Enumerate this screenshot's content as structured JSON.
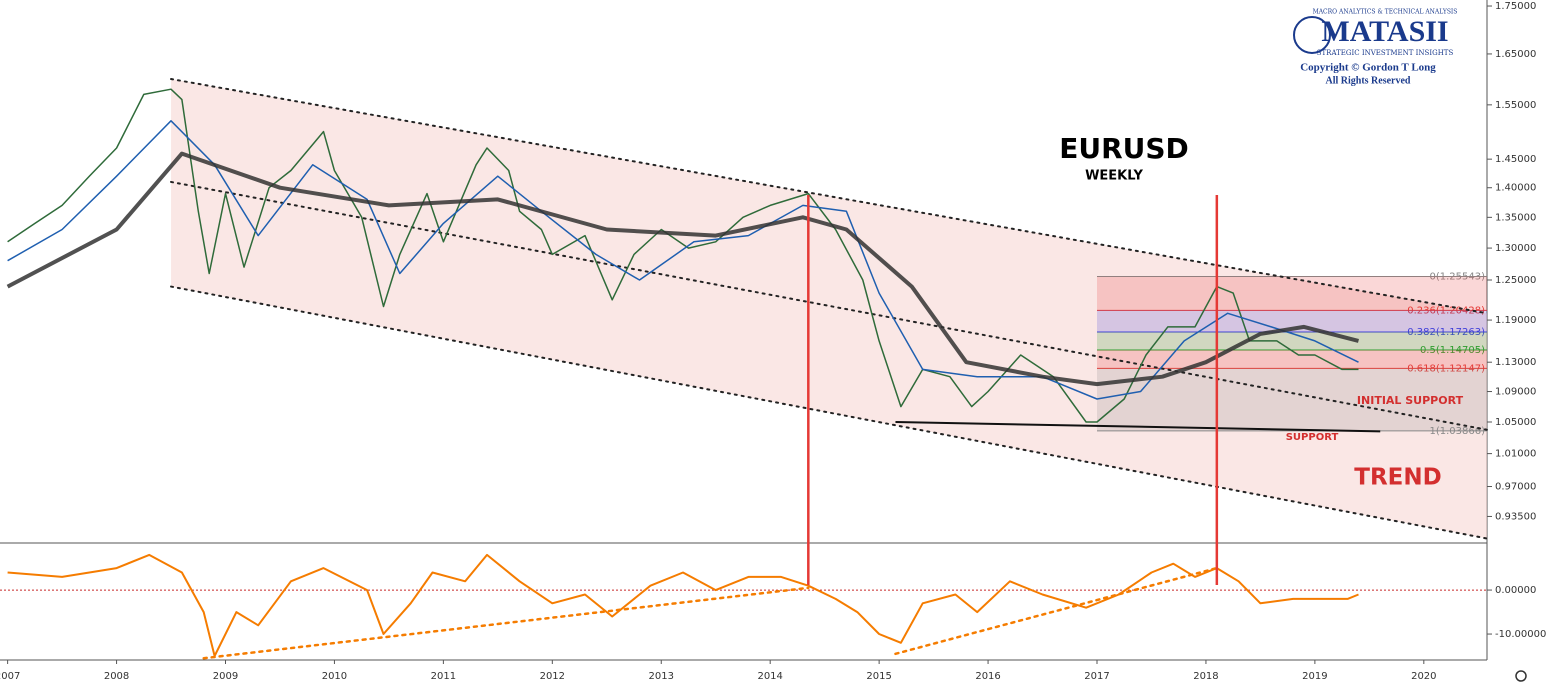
{
  "chart_data": [
    {
      "type": "line",
      "log_scale": true,
      "xlim": [
        2006.93,
        2020.58
      ],
      "ylim": [
        0.905,
        1.763
      ],
      "yticks": [
        {
          "value": 1.75,
          "label": "1.75000"
        },
        {
          "value": 1.65,
          "label": "1.65000"
        },
        {
          "value": 1.55,
          "label": "1.55000"
        },
        {
          "value": 1.45,
          "label": "1.45000"
        },
        {
          "value": 1.4,
          "label": "1.40000"
        },
        {
          "value": 1.35,
          "label": "1.35000"
        },
        {
          "value": 1.3,
          "label": "1.30000"
        },
        {
          "value": 1.25,
          "label": "1.25000"
        },
        {
          "value": 1.19,
          "label": "1.19000"
        },
        {
          "value": 1.13,
          "label": "1.13000"
        },
        {
          "value": 1.09,
          "label": "1.09000"
        },
        {
          "value": 1.05,
          "label": "1.05000"
        },
        {
          "value": 1.01,
          "label": "1.01000"
        },
        {
          "value": 0.97,
          "label": "0.97000"
        },
        {
          "value": 0.935,
          "label": "0.93500"
        }
      ],
      "series": [
        {
          "color": "#2f6b3a",
          "x": [
            2007.0,
            2007.25,
            2007.5,
            2007.75,
            2008.0,
            2008.25,
            2008.5,
            2008.6,
            2008.75,
            2008.85,
            2009.0,
            2009.17,
            2009.4,
            2009.6,
            2009.9,
            2010.0,
            2010.25,
            2010.45,
            2010.6,
            2010.85,
            2011.0,
            2011.3,
            2011.4,
            2011.6,
            2011.7,
            2011.9,
            2012.0,
            2012.3,
            2012.55,
            2012.75,
            2013.0,
            2013.25,
            2013.5,
            2013.75,
            2014.0,
            2014.35,
            2014.6,
            2014.85,
            2015.0,
            2015.2,
            2015.4,
            2015.65,
            2015.85,
            2016.0,
            2016.3,
            2016.6,
            2016.9,
            2017.0,
            2017.25,
            2017.45,
            2017.65,
            2017.9,
            2018.1,
            2018.25,
            2018.4,
            2018.65,
            2018.85,
            2019.0,
            2019.25,
            2019.4
          ],
          "values": [
            1.31,
            1.34,
            1.37,
            1.42,
            1.47,
            1.57,
            1.58,
            1.56,
            1.36,
            1.26,
            1.39,
            1.27,
            1.4,
            1.43,
            1.5,
            1.43,
            1.35,
            1.21,
            1.29,
            1.39,
            1.31,
            1.44,
            1.47,
            1.43,
            1.36,
            1.33,
            1.29,
            1.32,
            1.22,
            1.29,
            1.33,
            1.3,
            1.31,
            1.35,
            1.37,
            1.39,
            1.33,
            1.25,
            1.16,
            1.07,
            1.12,
            1.11,
            1.07,
            1.09,
            1.14,
            1.11,
            1.05,
            1.05,
            1.08,
            1.14,
            1.18,
            1.18,
            1.24,
            1.23,
            1.16,
            1.16,
            1.14,
            1.14,
            1.12,
            1.12
          ]
        },
        {
          "color": "#1f5fb0",
          "x": [
            2007.0,
            2007.5,
            2008.0,
            2008.5,
            2008.9,
            2009.3,
            2009.8,
            2010.3,
            2010.6,
            2011.0,
            2011.5,
            2011.9,
            2012.4,
            2012.8,
            2013.3,
            2013.8,
            2014.3,
            2014.7,
            2015.0,
            2015.4,
            2015.9,
            2016.5,
            2017.0,
            2017.4,
            2017.8,
            2018.2,
            2018.6,
            2019.0,
            2019.4
          ],
          "values": [
            1.28,
            1.33,
            1.42,
            1.52,
            1.44,
            1.32,
            1.44,
            1.38,
            1.26,
            1.34,
            1.42,
            1.36,
            1.29,
            1.25,
            1.31,
            1.32,
            1.37,
            1.36,
            1.23,
            1.12,
            1.11,
            1.11,
            1.08,
            1.09,
            1.16,
            1.2,
            1.18,
            1.16,
            1.13
          ]
        },
        {
          "color": "#333333",
          "x": [
            2007.0,
            2008.0,
            2008.6,
            2009.5,
            2010.5,
            2011.5,
            2012.5,
            2013.5,
            2014.3,
            2014.7,
            2015.3,
            2015.8,
            2016.5,
            2017.0,
            2017.6,
            2018.0,
            2018.5,
            2018.9,
            2019.4
          ],
          "values": [
            1.24,
            1.33,
            1.46,
            1.4,
            1.37,
            1.38,
            1.33,
            1.32,
            1.35,
            1.33,
            1.24,
            1.13,
            1.11,
            1.1,
            1.11,
            1.13,
            1.17,
            1.18,
            1.16
          ]
        }
      ],
      "trend_lines": [
        {
          "x": [
            2008.5,
            2020.58
          ],
          "values": [
            1.6,
            1.2
          ]
        },
        {
          "x": [
            2008.5,
            2020.58
          ],
          "values": [
            1.41,
            1.04
          ]
        },
        {
          "x": [
            2008.5,
            2020.58
          ],
          "values": [
            1.24,
            0.91
          ]
        }
      ],
      "support_line": {
        "x": [
          2015.15,
          2019.6
        ],
        "values": [
          1.05,
          1.038
        ]
      },
      "fib_xlim": [
        2017.0,
        2020.58
      ],
      "fib_levels": [
        {
          "value": 1.25543,
          "label": "0(1.25543)",
          "color": "#888888"
        },
        {
          "value": 1.20428,
          "label": "0.236(1.20428)",
          "color": "#e53935"
        },
        {
          "value": 1.17263,
          "label": "0.382(1.17263)",
          "color": "#3f3fd9"
        },
        {
          "value": 1.14705,
          "label": "0.5(1.14705)",
          "color": "#2e9d2e"
        },
        {
          "value": 1.12147,
          "label": "0.618(1.12147)",
          "color": "#e53935"
        },
        {
          "value": 1.03866,
          "label": "1(1.03866)",
          "color": "#888888"
        }
      ],
      "markers_x": [
        2014.35,
        2018.1
      ],
      "title": "EURUSD",
      "subtitle": "WEEKLY",
      "annotations": [
        "INITIAL SUPPORT",
        "SUPPORT",
        "TREND"
      ],
      "logo": {
        "tagline": "MACRO ANALYTICS & TECHNICAL ANALYSIS",
        "name": "MATASII",
        "sub": "STRATEGIC INVESTMENT INSIGHTS",
        "copyright": "Copyright © Gordon T Long",
        "rights": "All Rights Reserved"
      }
    },
    {
      "type": "line",
      "xlim": [
        2006.93,
        2020.58
      ],
      "ylim": [
        -15.9,
        10.7
      ],
      "xticks": [
        2007,
        2008,
        2009,
        2010,
        2011,
        2012,
        2013,
        2014,
        2015,
        2016,
        2017,
        2018,
        2019,
        2020
      ],
      "yticks": [
        {
          "value": 0,
          "label": "0.00000"
        },
        {
          "value": -10,
          "label": "-10.00000"
        }
      ],
      "series": [
        {
          "color": "#f57c00",
          "x": [
            2007.0,
            2007.5,
            2008.0,
            2008.3,
            2008.6,
            2008.8,
            2008.9,
            2009.1,
            2009.3,
            2009.6,
            2009.9,
            2010.3,
            2010.45,
            2010.7,
            2010.9,
            2011.2,
            2011.4,
            2011.7,
            2012.0,
            2012.3,
            2012.55,
            2012.9,
            2013.2,
            2013.5,
            2013.8,
            2014.1,
            2014.35,
            2014.6,
            2014.8,
            2015.0,
            2015.2,
            2015.4,
            2015.7,
            2015.9,
            2016.2,
            2016.5,
            2016.9,
            2017.2,
            2017.5,
            2017.7,
            2017.9,
            2018.1,
            2018.3,
            2018.5,
            2018.8,
            2019.0,
            2019.3,
            2019.4
          ],
          "values": [
            4,
            3,
            5,
            8,
            4,
            -5,
            -15,
            -5,
            -8,
            2,
            5,
            0,
            -10,
            -3,
            4,
            2,
            8,
            2,
            -3,
            -1,
            -6,
            1,
            4,
            0,
            3,
            3,
            1,
            -2,
            -5,
            -10,
            -12,
            -3,
            -1,
            -5,
            2,
            -1,
            -4,
            -1,
            4,
            6,
            3,
            5,
            2,
            -3,
            -2,
            -2,
            -2,
            -1
          ]
        }
      ],
      "trend_lines": [
        {
          "x": [
            2008.8,
            2014.35
          ],
          "values": [
            -15.5,
            0.5
          ]
        },
        {
          "x": [
            2015.15,
            2018.1
          ],
          "values": [
            -14.5,
            5
          ]
        }
      ],
      "zero_line": 0
    }
  ]
}
